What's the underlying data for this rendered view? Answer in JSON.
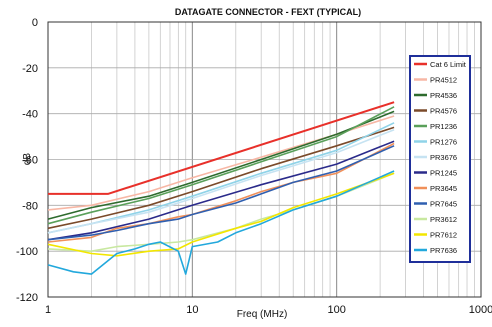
{
  "chart_data": {
    "type": "line",
    "title": "DATAGATE CONNECTOR - FEXT (TYPICAL)",
    "xlabel": "Freq (MHz)",
    "ylabel": "dB",
    "xscale": "log",
    "xlim": [
      1,
      1000
    ],
    "ylim": [
      -120,
      0
    ],
    "xticks": [
      1,
      10,
      100,
      1000
    ],
    "yticks": [
      0,
      -20,
      -40,
      -60,
      -80,
      -100,
      -120
    ],
    "grid": true,
    "legend": "right",
    "series": [
      {
        "name": "Cat 6 Limit",
        "color": "#e8302a",
        "x": [
          1,
          2.6,
          250
        ],
        "y": [
          -75,
          -75,
          -35
        ]
      },
      {
        "name": "PR4512",
        "color": "#f7b7a5",
        "x": [
          1,
          2,
          5,
          10,
          30,
          100,
          250
        ],
        "y": [
          -82,
          -80,
          -74,
          -68,
          -59,
          -49,
          -41
        ]
      },
      {
        "name": "PR4536",
        "color": "#2e6b2e",
        "x": [
          1,
          2,
          5,
          10,
          30,
          100,
          250
        ],
        "y": [
          -86,
          -81,
          -76,
          -70,
          -60,
          -49,
          -39
        ]
      },
      {
        "name": "PR4576",
        "color": "#7a4a2a",
        "x": [
          1,
          2,
          5,
          10,
          30,
          100,
          250
        ],
        "y": [
          -90,
          -86,
          -80,
          -74,
          -64,
          -54,
          -46
        ]
      },
      {
        "name": "PR1236",
        "color": "#5aa05a",
        "x": [
          1,
          2,
          5,
          10,
          30,
          100,
          250
        ],
        "y": [
          -88,
          -83,
          -77,
          -71,
          -61,
          -50,
          -37
        ]
      },
      {
        "name": "PR1276",
        "color": "#8fd3e8",
        "x": [
          1,
          2,
          5,
          10,
          30,
          100,
          250
        ],
        "y": [
          -92,
          -88,
          -82,
          -76,
          -66,
          -56,
          -44
        ]
      },
      {
        "name": "PR3676",
        "color": "#c6e3f2",
        "x": [
          1,
          2,
          5,
          10,
          30,
          100,
          250
        ],
        "y": [
          -92,
          -88,
          -83,
          -77,
          -67,
          -57,
          -47
        ]
      },
      {
        "name": "PR1245",
        "color": "#2a2a8a",
        "x": [
          1,
          2,
          5,
          10,
          30,
          100,
          250
        ],
        "y": [
          -95,
          -92,
          -86,
          -80,
          -71,
          -62,
          -52
        ]
      },
      {
        "name": "PR3645",
        "color": "#f0905a",
        "x": [
          1,
          2,
          3,
          5,
          8,
          10,
          20,
          30,
          50,
          100,
          250
        ],
        "y": [
          -96,
          -94,
          -90,
          -88,
          -85,
          -84,
          -78,
          -74,
          -70,
          -66,
          -53
        ]
      },
      {
        "name": "PR7645",
        "color": "#2f5fb0",
        "x": [
          1,
          2,
          3,
          5,
          8,
          10,
          20,
          30,
          50,
          100,
          250
        ],
        "y": [
          -95,
          -93,
          -91,
          -88,
          -86,
          -84,
          -79,
          -75,
          -70,
          -65,
          -54
        ]
      },
      {
        "name": "PR3612",
        "color": "#c8e8a0",
        "x": [
          1,
          2,
          3,
          5,
          8,
          10,
          20,
          30,
          50,
          100,
          250
        ],
        "y": [
          -99,
          -100,
          -98,
          -97,
          -96,
          -95,
          -90,
          -86,
          -82,
          -76,
          -66
        ]
      },
      {
        "name": "PR7612",
        "color": "#f2e600",
        "x": [
          1,
          2,
          3,
          5,
          8,
          10,
          20,
          30,
          50,
          100,
          250
        ],
        "y": [
          -97,
          -101,
          -102,
          -100,
          -99,
          -96,
          -90,
          -87,
          -81,
          -75,
          -66
        ]
      },
      {
        "name": "PR7636",
        "color": "#22a8dc",
        "x": [
          1,
          1.5,
          2,
          3,
          4,
          5,
          6,
          8,
          9,
          10,
          15,
          20,
          30,
          50,
          100,
          250
        ],
        "y": [
          -106,
          -109,
          -110,
          -101,
          -99,
          -97,
          -96,
          -100,
          -110,
          -98,
          -96,
          -92,
          -88,
          -82,
          -76,
          -65
        ]
      }
    ]
  }
}
